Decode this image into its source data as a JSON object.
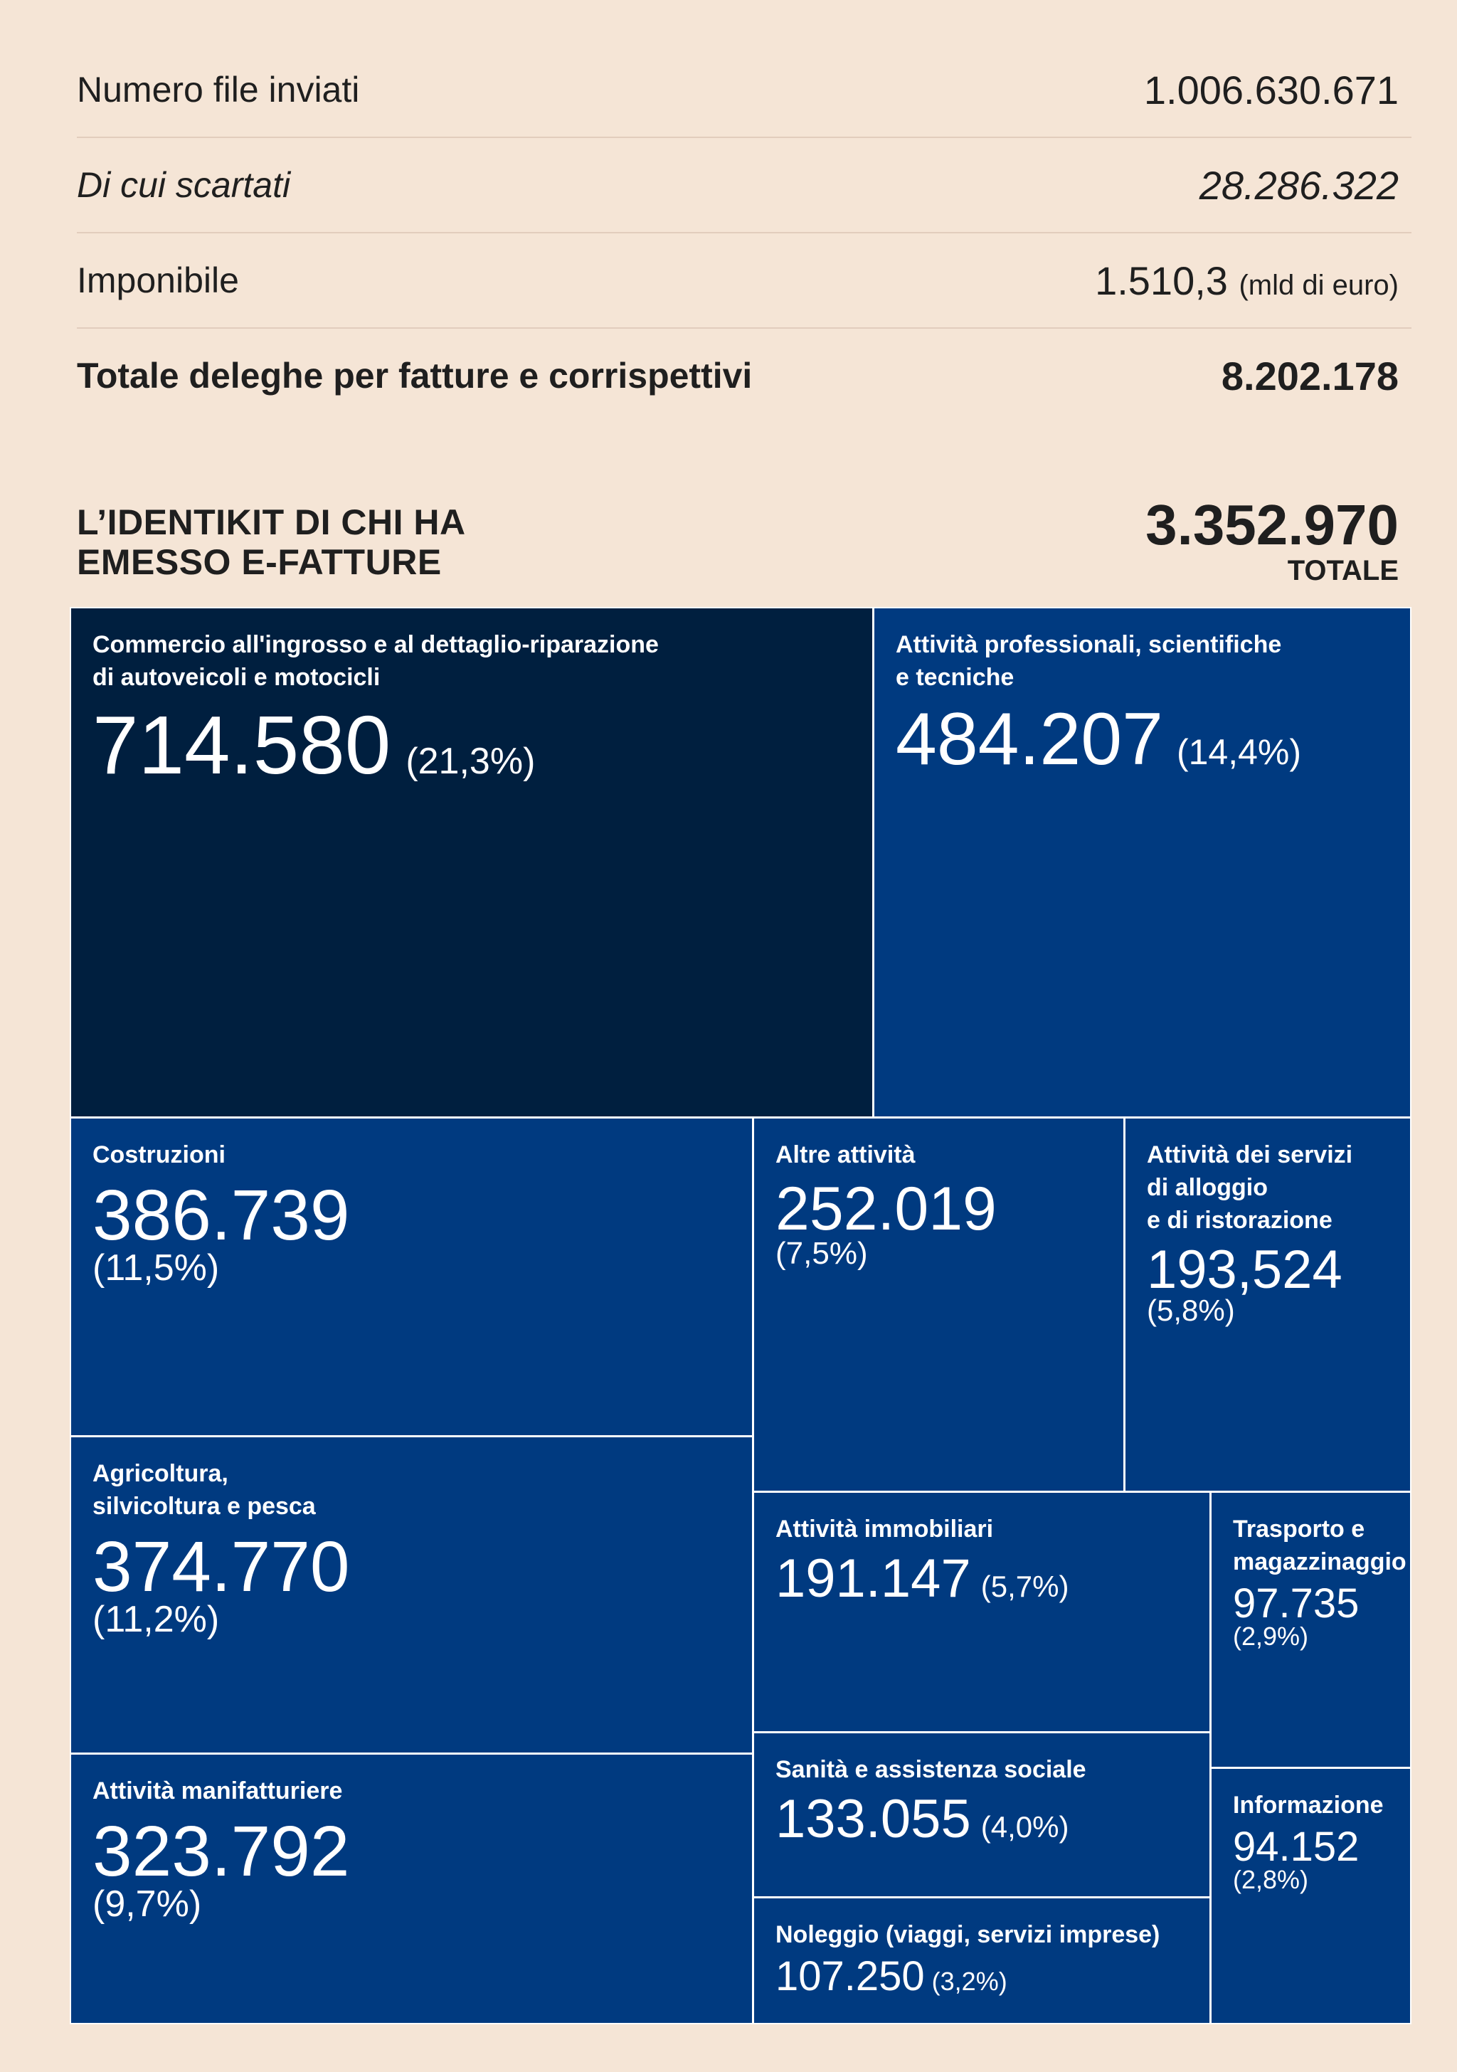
{
  "stats": [
    {
      "label": "Numero file inviati",
      "value": "1.006.630.671",
      "unit": "",
      "style": "normal"
    },
    {
      "label": "Di cui scartati",
      "value": "28.286.322",
      "unit": "",
      "style": "italic"
    },
    {
      "label": "Imponibile",
      "value": "1.510,3",
      "unit": "(mld di euro)",
      "style": "normal"
    },
    {
      "label": "Totale deleghe per fatture e corrispettivi",
      "value": "8.202.178",
      "unit": "",
      "style": "bold"
    }
  ],
  "chart_data": {
    "type": "treemap",
    "title": "L’IDENTIKIT DI CHI HA\nEMESSO E-FATTURE",
    "total_value": "3.352.970",
    "total_label": "TOTALE",
    "categories": [
      "Commercio all'ingrosso e al dettaglio-riparazione di autoveicoli e motocicli",
      "Attività professionali, scientifiche e tecniche",
      "Costruzioni",
      "Agricoltura, silvicoltura e pesca",
      "Attività manifatturiere",
      "Altre attività",
      "Attività dei servizi di alloggio e di ristorazione",
      "Attività immobiliari",
      "Trasporto e magazzinaggio",
      "Sanità e assistenza sociale",
      "Informazione",
      "Noleggio (viaggi, servizi imprese)"
    ],
    "values": [
      714580,
      484207,
      386739,
      374770,
      323792,
      252019,
      193524,
      191147,
      97735,
      133055,
      94152,
      107250
    ],
    "value_labels": [
      "714.580",
      "484.207",
      "386.739",
      "374.770",
      "323.792",
      "252.019",
      "193,524",
      "191.147",
      "97.735",
      "133.055",
      "94.152",
      "107.250"
    ],
    "percent_labels": [
      "(21,3%)",
      "(14,4%)",
      "(11,5%)",
      "(11,2%)",
      "(9,7%)",
      "(7,5%)",
      "(5,8%)",
      "(5,7%)",
      "(2,9%)",
      "(4,0%)",
      "(2,8%)",
      "(3,2%)"
    ],
    "display_labels": [
      "Commercio all'ingrosso e al dettaglio-riparazione\ndi autoveicoli e motocicli",
      "Attività professionali, scientifiche\ne tecniche",
      "Costruzioni",
      "Agricoltura,\nsilvicoltura e pesca",
      "Attività manifatturiere",
      "Altre attività",
      "Attività dei servizi\ndi alloggio\ne di ristorazione",
      "Attività immobiliari",
      "Trasporto e\nmagazzinaggio",
      "Sanità e assistenza sociale",
      "Informazione",
      "Noleggio (viaggi, servizi imprese)"
    ],
    "colors": {
      "highlight": "#001f3f",
      "default": "#003a80",
      "background": "#f5e5d6"
    }
  }
}
